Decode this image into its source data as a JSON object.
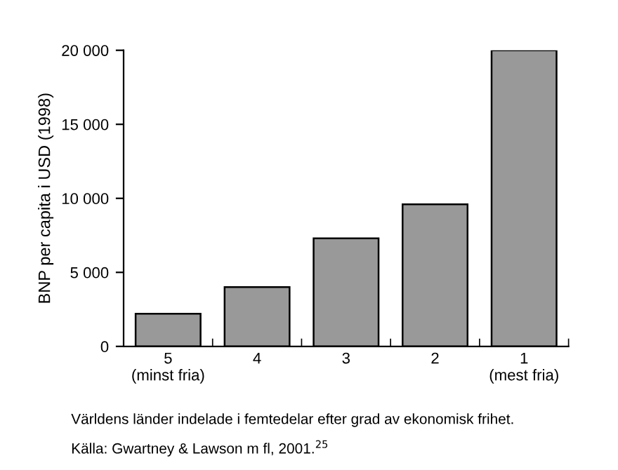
{
  "chart_data": {
    "type": "bar",
    "ylabel": "BNP per capita i USD (1998)",
    "categories": [
      "5\n(minst fria)",
      "4",
      "3",
      "2",
      "1\n(mest fria)"
    ],
    "values": [
      2200,
      4000,
      7300,
      9600,
      20000
    ],
    "color": "#999999",
    "ylim": [
      0,
      20000
    ],
    "yticks": [
      0,
      {
        "value": 5000,
        "label": "5 000"
      },
      {
        "value": 10000,
        "label": "10 000"
      },
      {
        "value": 15000,
        "label": "15 000"
      },
      {
        "value": 20000,
        "label": "20 000"
      }
    ],
    "grid": false,
    "annotations": [
      "Världens länder indelade i femtedelar efter grad av ekonomisk frihet.",
      "Källa: Gwartney & Lawson m fl, 2001.$^{25}$"
    ]
  }
}
